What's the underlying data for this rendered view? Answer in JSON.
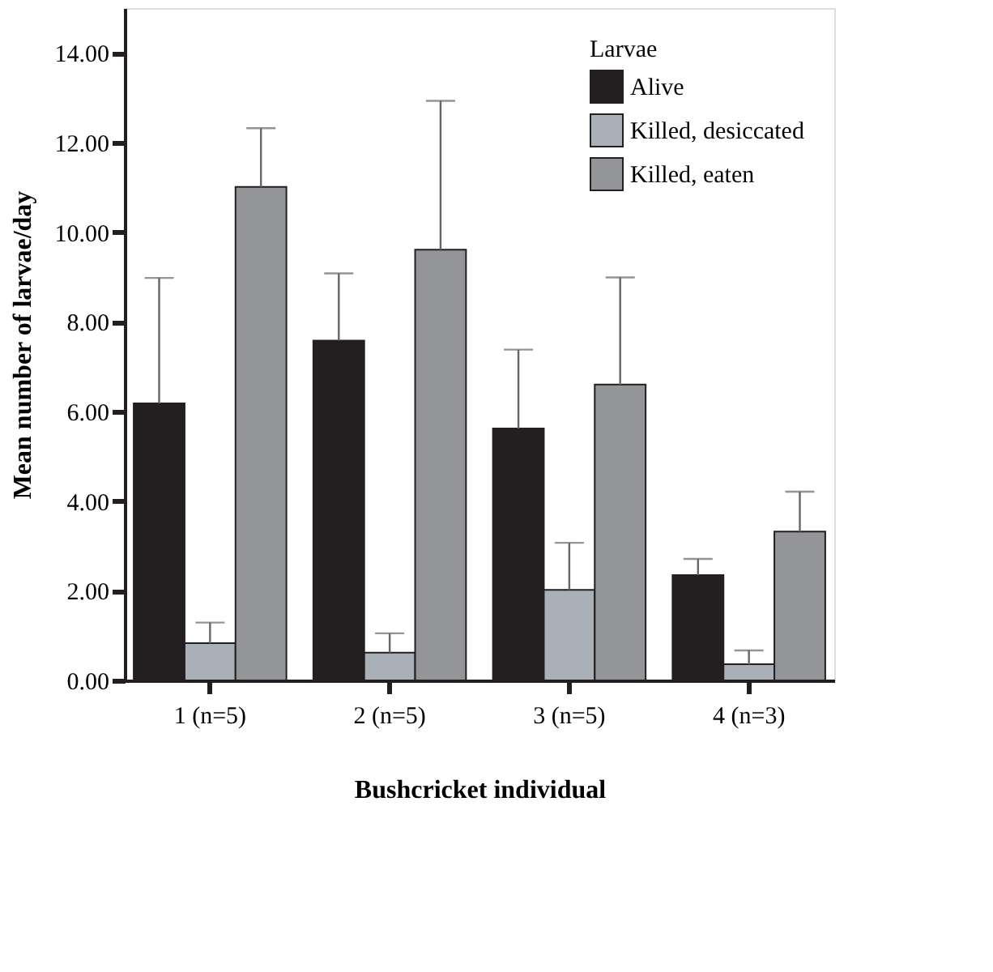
{
  "chart_data": {
    "type": "bar",
    "xlabel": "Bushcricket individual",
    "ylabel": "Mean number of larvae/day",
    "legend_title": "Larvae",
    "categories": [
      "1 (n=5)",
      "2 (n=5)",
      "3 (n=5)",
      "4 (n=3)"
    ],
    "series": [
      {
        "name": "Alive",
        "color": "#231f20",
        "values": [
          6.18,
          7.58,
          5.62,
          2.35
        ],
        "errors": [
          [
            6.18,
            8.98
          ],
          [
            7.58,
            9.08
          ],
          [
            5.62,
            7.38
          ],
          [
            2.35,
            2.71
          ]
        ]
      },
      {
        "name": "Killed, desiccated",
        "color": "#a9b0b8",
        "values": [
          0.83,
          0.62,
          2.02,
          0.36
        ],
        "errors": [
          [
            0.83,
            1.29
          ],
          [
            0.62,
            1.05
          ],
          [
            2.02,
            3.07
          ],
          [
            0.36,
            0.67
          ]
        ]
      },
      {
        "name": "Killed, eaten",
        "color": "#939598",
        "values": [
          11.01,
          9.61,
          6.6,
          3.32
        ],
        "errors": [
          [
            11.01,
            12.32
          ],
          [
            9.61,
            12.93
          ],
          [
            6.6,
            8.99
          ],
          [
            3.32,
            4.21
          ]
        ]
      }
    ],
    "ylim": [
      0,
      15
    ],
    "yticks": [
      {
        "value": 0,
        "label": "0.00"
      },
      {
        "value": 2,
        "label": "2.00"
      },
      {
        "value": 4,
        "label": "4.00"
      },
      {
        "value": 6,
        "label": "6.00"
      },
      {
        "value": 8,
        "label": "8.00"
      },
      {
        "value": 10,
        "label": "10.00"
      },
      {
        "value": 12,
        "label": "12.00"
      },
      {
        "value": 14,
        "label": "14.00"
      }
    ],
    "grid": false,
    "legend": "top right"
  }
}
